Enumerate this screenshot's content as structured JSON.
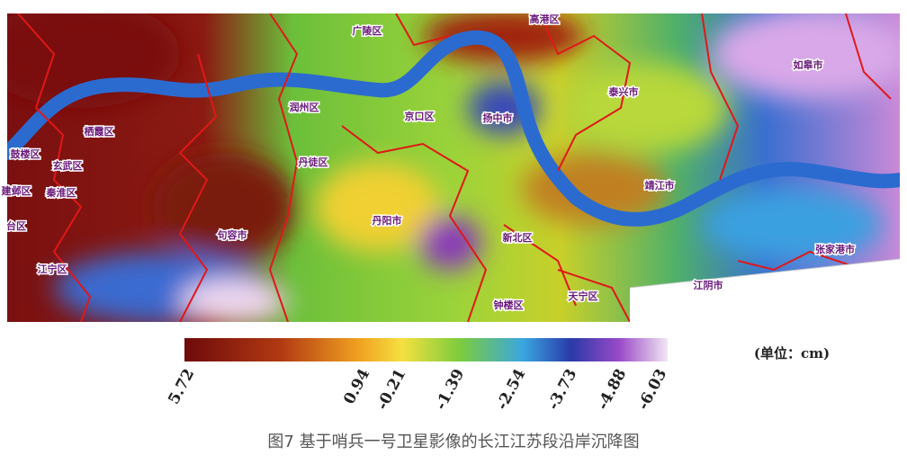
{
  "map": {
    "labels": [
      "广陵区",
      "高港区",
      "如皋市",
      "泰兴市",
      "润州区",
      "京口区",
      "扬中市",
      "栖霞区",
      "鼓楼区",
      "玄武区",
      "丹徒区",
      "靖江市",
      "建邺区",
      "秦淮区",
      "台区",
      "丹阳市",
      "句容市",
      "新北区",
      "张家港市",
      "江宁区",
      "江阴市",
      "天宁区",
      "钟楼区"
    ]
  },
  "colorbar": {
    "ticks": [
      5.72,
      0.94,
      -0.21,
      -1.39,
      -2.54,
      -3.73,
      -4.88,
      -6.03
    ],
    "unit": "(单位：cm)"
  },
  "caption": "图7  基于哨兵一号卫星影像的长江江苏段沿岸沉降图"
}
